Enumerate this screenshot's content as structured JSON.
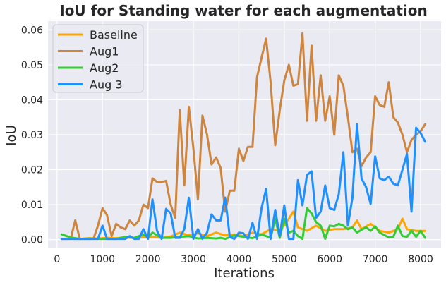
{
  "chart_data": {
    "type": "line",
    "title": "IoU for Standing water for each augmentation",
    "xlabel": "Iterations",
    "ylabel": "IoU",
    "xlim": [
      -200,
      8450
    ],
    "ylim": [
      -0.0025,
      0.0625
    ],
    "xticks": [
      0,
      1000,
      2000,
      3000,
      4000,
      5000,
      6000,
      7000,
      8000
    ],
    "yticks": [
      0.0,
      0.01,
      0.02,
      0.03,
      0.04,
      0.05,
      0.06
    ],
    "xtick_labels": [
      "0",
      "1000",
      "2000",
      "3000",
      "4000",
      "5000",
      "6000",
      "7000",
      "8000"
    ],
    "ytick_labels": [
      "0.00",
      "0.01",
      "0.02",
      "0.03",
      "0.04",
      "0.05",
      "0.06"
    ],
    "grid": true,
    "legend_position": "top-left",
    "background": "#eaeaf2",
    "series": [
      {
        "name": "Baseline",
        "color": "#ffa500",
        "x": [
          100,
          300,
          500,
          700,
          900,
          1100,
          1300,
          1500,
          1700,
          1900,
          2100,
          2300,
          2500,
          2700,
          2900,
          3100,
          3300,
          3500,
          3700,
          3900,
          4100,
          4300,
          4500,
          4700,
          4900,
          5100,
          5200,
          5300,
          5500,
          5700,
          5900,
          6100,
          6300,
          6500,
          6600,
          6700,
          6900,
          7100,
          7300,
          7500,
          7600,
          7700,
          7900,
          8100
        ],
        "values": [
          0.0002,
          0.0003,
          0.0002,
          0.0004,
          0.0003,
          0.0005,
          0.0004,
          0.0006,
          0.0005,
          0.0008,
          0.0007,
          0.0006,
          0.0009,
          0.002,
          0.0012,
          0.0018,
          0.001,
          0.002,
          0.0012,
          0.0015,
          0.001,
          0.002,
          0.0015,
          0.003,
          0.0025,
          0.006,
          0.008,
          0.0035,
          0.0025,
          0.004,
          0.0025,
          0.003,
          0.003,
          0.0035,
          0.0055,
          0.003,
          0.0045,
          0.0025,
          0.002,
          0.003,
          0.006,
          0.003,
          0.0025,
          0.0025
        ]
      },
      {
        "name": "Aug1",
        "color": "#cd853f",
        "x": [
          100,
          200,
          300,
          400,
          500,
          600,
          700,
          800,
          900,
          1000,
          1100,
          1200,
          1300,
          1400,
          1500,
          1600,
          1700,
          1800,
          1900,
          2000,
          2100,
          2200,
          2300,
          2400,
          2500,
          2600,
          2700,
          2800,
          2900,
          3000,
          3100,
          3200,
          3300,
          3400,
          3500,
          3600,
          3700,
          3800,
          3900,
          4000,
          4100,
          4200,
          4300,
          4400,
          4500,
          4600,
          4700,
          4800,
          4900,
          5000,
          5100,
          5200,
          5300,
          5400,
          5500,
          5600,
          5700,
          5800,
          5900,
          6000,
          6100,
          6200,
          6300,
          6400,
          6500,
          6600,
          6700,
          6800,
          6900,
          7000,
          7100,
          7200,
          7300,
          7400,
          7500,
          7600,
          7700,
          7800,
          7900,
          8000,
          8100
        ],
        "values": [
          0.0002,
          0.0002,
          0.0002,
          0.0055,
          0.0002,
          0.0002,
          0.0002,
          0.0002,
          0.004,
          0.009,
          0.007,
          0.001,
          0.0045,
          0.0035,
          0.003,
          0.0055,
          0.004,
          0.0055,
          0.01,
          0.009,
          0.0175,
          0.0165,
          0.0165,
          0.0168,
          0.01,
          0.0062,
          0.037,
          0.0155,
          0.038,
          0.026,
          0.0115,
          0.0355,
          0.03,
          0.0215,
          0.0235,
          0.0205,
          0.008,
          0.014,
          0.014,
          0.026,
          0.0225,
          0.0265,
          0.0265,
          0.0465,
          0.052,
          0.0575,
          0.045,
          0.027,
          0.037,
          0.0455,
          0.05,
          0.044,
          0.0445,
          0.059,
          0.034,
          0.0555,
          0.034,
          0.047,
          0.034,
          0.041,
          0.03,
          0.047,
          0.044,
          0.035,
          0.025,
          0.026,
          0.021,
          0.0235,
          0.025,
          0.041,
          0.0385,
          0.038,
          0.045,
          0.035,
          0.0335,
          0.03,
          0.025,
          0.0285,
          0.03,
          0.031,
          0.033
        ]
      },
      {
        "name": "Aug2",
        "color": "#32cd32",
        "x": [
          100,
          300,
          500,
          700,
          900,
          1100,
          1300,
          1500,
          1700,
          1900,
          2000,
          2100,
          2300,
          2500,
          2700,
          2900,
          3100,
          3300,
          3500,
          3600,
          3700,
          3900,
          4100,
          4300,
          4500,
          4700,
          4800,
          4900,
          5000,
          5100,
          5200,
          5300,
          5400,
          5500,
          5600,
          5700,
          5800,
          5900,
          6000,
          6100,
          6200,
          6300,
          6400,
          6500,
          6600,
          6700,
          6800,
          6900,
          7000,
          7100,
          7300,
          7400,
          7500,
          7600,
          7700,
          7800,
          7900,
          8000,
          8100
        ],
        "values": [
          0.0015,
          0.0006,
          0.0002,
          0.0003,
          0.0002,
          0.0002,
          0.0002,
          0.0008,
          0.0005,
          0.0015,
          0.0006,
          0.002,
          0.0005,
          0.0005,
          0.0008,
          0.001,
          0.0003,
          0.0005,
          0.0003,
          0.0005,
          0.0002,
          0.0012,
          0.0008,
          0.0004,
          0.0015,
          0.0005,
          0.006,
          0.0005,
          0.006,
          0.002,
          0.0025,
          0.001,
          0.0002,
          0.009,
          0.0075,
          0.005,
          0.004,
          0.0002,
          0.004,
          0.0038,
          0.0045,
          0.004,
          0.003,
          0.0035,
          0.002,
          0.0028,
          0.0035,
          0.0025,
          0.0038,
          0.002,
          0.0006,
          0.0008,
          0.004,
          0.001,
          0.0008,
          0.0025,
          0.0008,
          0.0025,
          0.0005
        ]
      },
      {
        "name": "Aug 3",
        "color": "#1e90ff",
        "x": [
          100,
          300,
          500,
          700,
          900,
          1000,
          1100,
          1300,
          1500,
          1600,
          1700,
          1800,
          1900,
          2000,
          2100,
          2200,
          2300,
          2400,
          2500,
          2600,
          2700,
          2800,
          2900,
          3000,
          3100,
          3200,
          3300,
          3400,
          3500,
          3600,
          3700,
          3800,
          3900,
          4000,
          4100,
          4200,
          4300,
          4400,
          4500,
          4600,
          4700,
          4800,
          4900,
          5000,
          5100,
          5200,
          5300,
          5400,
          5500,
          5600,
          5700,
          5800,
          5900,
          6000,
          6100,
          6200,
          6300,
          6400,
          6500,
          6600,
          6700,
          6800,
          6900,
          7000,
          7100,
          7200,
          7300,
          7400,
          7500,
          7600,
          7700,
          7800,
          7900,
          8000,
          8100
        ],
        "values": [
          0.0002,
          0.0002,
          0.0002,
          0.0002,
          0.0002,
          0.004,
          0.0002,
          0.0002,
          0.0002,
          0.001,
          0.0002,
          0.0002,
          0.003,
          0.0002,
          0.0115,
          0.0025,
          0.0002,
          0.0088,
          0.0075,
          0.0005,
          0.0005,
          0.003,
          0.012,
          0.0002,
          0.003,
          0.0002,
          0.002,
          0.0072,
          0.0055,
          0.0055,
          0.012,
          0.0008,
          0.0002,
          0.002,
          0.0018,
          0.0002,
          0.0048,
          0.0002,
          0.009,
          0.0145,
          0.0002,
          0.0085,
          0.001,
          0.0098,
          0.0002,
          0.0002,
          0.017,
          0.0098,
          0.0185,
          0.0195,
          0.0062,
          0.008,
          0.0155,
          0.009,
          0.0085,
          0.013,
          0.025,
          0.004,
          0.012,
          0.033,
          0.0175,
          0.015,
          0.0102,
          0.0238,
          0.0175,
          0.017,
          0.018,
          0.016,
          0.0155,
          0.02,
          0.0245,
          0.008,
          0.032,
          0.0305,
          0.028
        ]
      }
    ]
  }
}
